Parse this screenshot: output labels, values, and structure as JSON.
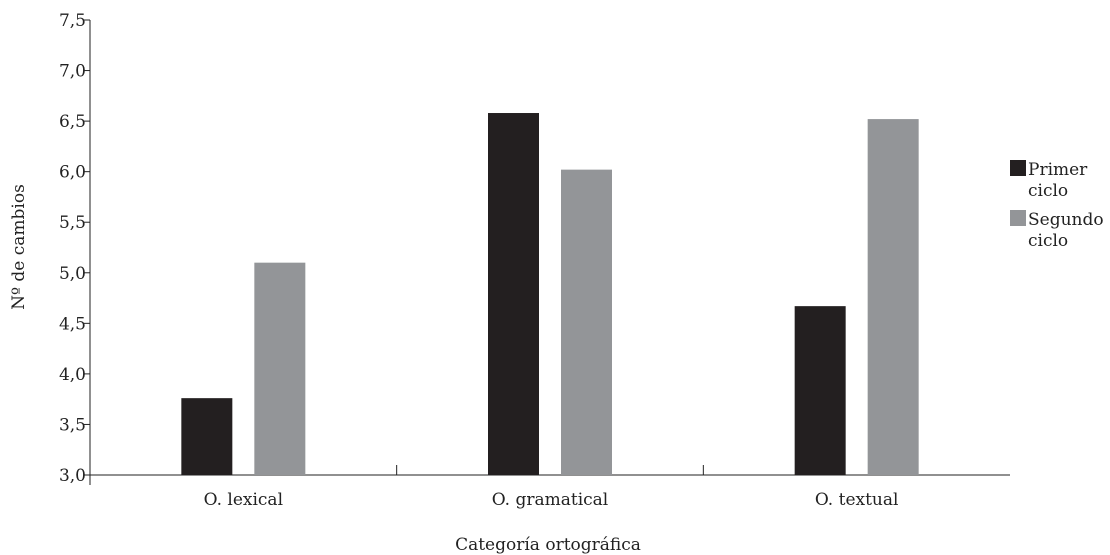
{
  "chart_data": {
    "type": "bar",
    "title": "",
    "xlabel": "Categoría ortográfica",
    "ylabel": "Nº de cambios",
    "categories": [
      "O. lexical",
      "O. gramatical",
      "O. textual"
    ],
    "series": [
      {
        "name": "Primer ciclo",
        "values": [
          3.76,
          6.58,
          4.67
        ],
        "color": "#231f20"
      },
      {
        "name": "Segundo ciclo",
        "values": [
          5.1,
          6.02,
          6.52
        ],
        "color": "#939598"
      }
    ],
    "ylim": [
      3.0,
      7.5
    ],
    "yticks": [
      "3,0",
      "3,5",
      "4,0",
      "4,5",
      "5,0",
      "5,5",
      "6,0",
      "6,5",
      "7,0",
      "7,5"
    ],
    "legend": {
      "placement": "right",
      "entries": [
        {
          "line1": "Primer",
          "line2": "ciclo"
        },
        {
          "line1": "Segundo",
          "line2": "ciclo"
        }
      ]
    },
    "grid": false
  }
}
